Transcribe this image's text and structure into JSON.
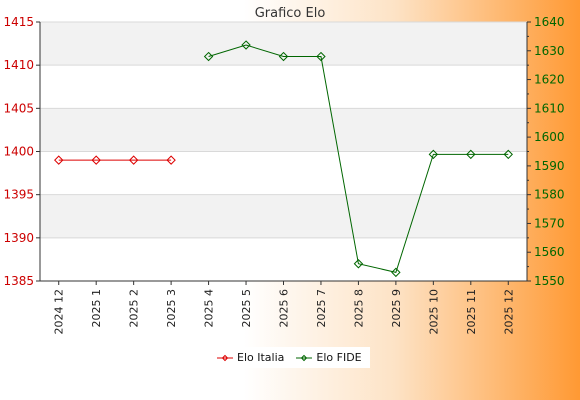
{
  "chart_data": {
    "type": "line",
    "title": "Grafico Elo",
    "categories": [
      "2024 12",
      "2025 1",
      "2025 2",
      "2025 3",
      "2025 4",
      "2025 5",
      "2025 6",
      "2025 7",
      "2025 8",
      "2025 9",
      "2025 10",
      "2025 11",
      "2025 12"
    ],
    "left_ticks": [
      "1385",
      "1390",
      "1395",
      "1400",
      "1405",
      "1410",
      "1415"
    ],
    "right_ticks": [
      "1550",
      "1560",
      "1570",
      "1580",
      "1590",
      "1600",
      "1610",
      "1620",
      "1630",
      "1640"
    ],
    "ylim_left": [
      1385,
      1415
    ],
    "ylim_right": [
      1550,
      1640
    ],
    "grid": true,
    "legend_position": "bottom",
    "series": [
      {
        "name": "Elo Italia",
        "axis": "left",
        "color": "#dd0000",
        "values": [
          1399,
          1399,
          1399,
          1399,
          null,
          null,
          null,
          null,
          null,
          null,
          null,
          null,
          null
        ]
      },
      {
        "name": "Elo FIDE",
        "axis": "right",
        "color": "#006600",
        "values": [
          null,
          null,
          null,
          null,
          1628,
          1632,
          1628,
          1628,
          1556,
          1553,
          1594,
          1594,
          1594
        ]
      }
    ]
  }
}
